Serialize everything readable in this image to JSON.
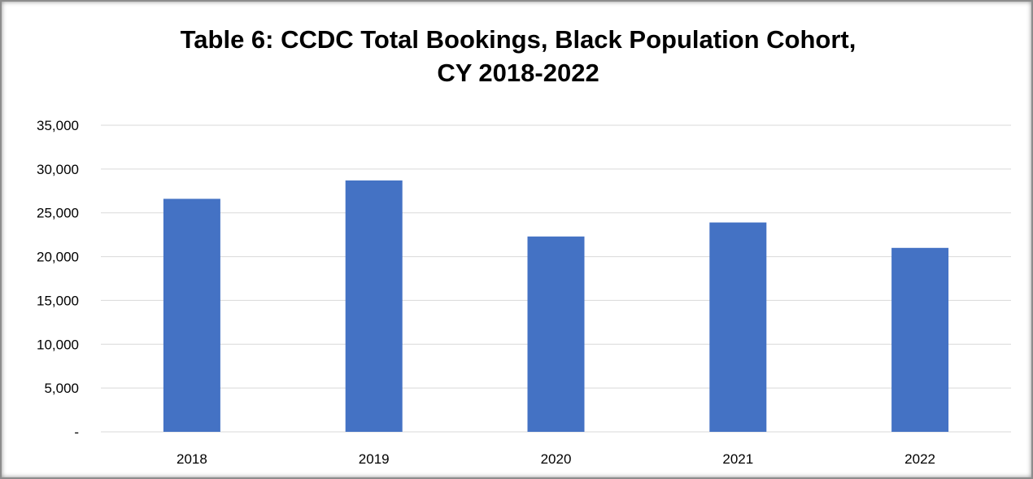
{
  "chart_data": {
    "type": "bar",
    "title_lines": [
      "Table 6:  CCDC Total Bookings, Black Population Cohort,",
      "CY 2018-2022"
    ],
    "categories": [
      "2018",
      "2019",
      "2020",
      "2021",
      "2022"
    ],
    "values": [
      26600,
      28700,
      22300,
      23900,
      21000
    ],
    "ylim": [
      0,
      35000
    ],
    "yticks": [
      0,
      5000,
      10000,
      15000,
      20000,
      25000,
      30000,
      35000
    ],
    "ytick_labels": [
      "-",
      "5,000",
      "10,000",
      "15,000",
      "20,000",
      "25,000",
      "30,000",
      "35,000"
    ],
    "xlabel": "",
    "ylabel": "",
    "grid": true,
    "legend": "none",
    "bar_color": "#4472c4",
    "grid_color": "#d9d9d9"
  }
}
